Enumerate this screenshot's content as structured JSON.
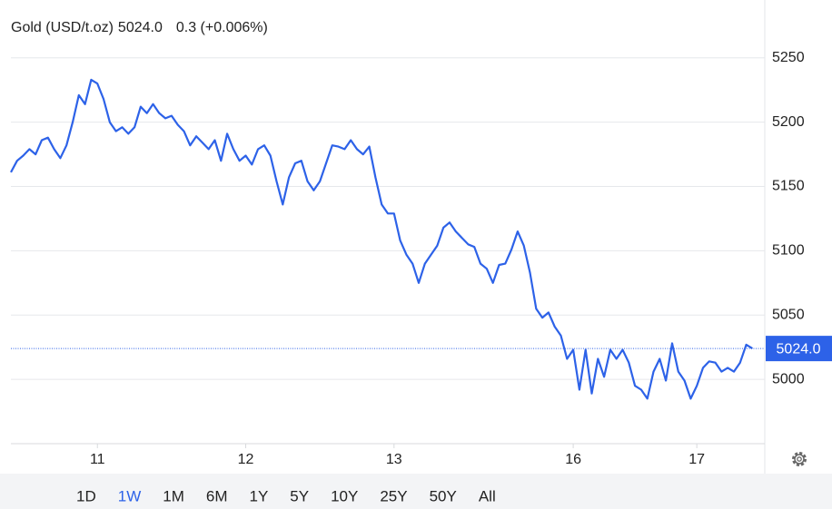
{
  "chart_data": {
    "type": "line",
    "title": "Gold (USD/t.oz)",
    "last_price": {
      "value": 5024,
      "label": "5024.0"
    },
    "change": "0.3 (+0.006%)",
    "change_color": "#2eb82e",
    "x": [
      0,
      1,
      2,
      3,
      4,
      5,
      6,
      7,
      8,
      9,
      10,
      11,
      12,
      13,
      14,
      15,
      16,
      17,
      18,
      19,
      20,
      21,
      22,
      23,
      24,
      25,
      26,
      27,
      28,
      29,
      30,
      31,
      32,
      33,
      34,
      35,
      36,
      37,
      38,
      39,
      40,
      41,
      42,
      43,
      44,
      45,
      46,
      47,
      48,
      49,
      50,
      51,
      52,
      53,
      54,
      55,
      56,
      57,
      58,
      59,
      60,
      61,
      62,
      63,
      64,
      65,
      66,
      67,
      68,
      69,
      70,
      71,
      72,
      73,
      74,
      75,
      76,
      77,
      78,
      79,
      80,
      81,
      82,
      83,
      84,
      85,
      86,
      87,
      88,
      89,
      90,
      91,
      92,
      93,
      94,
      95,
      96,
      97,
      98,
      99,
      100,
      101,
      102,
      103,
      104,
      105,
      106,
      107,
      108,
      109,
      110,
      111,
      112,
      113,
      114,
      115,
      116,
      117,
      118,
      119,
      120
    ],
    "series": [
      {
        "color": "#2d62e8",
        "values": [
          5161,
          5170,
          5174,
          5179,
          5175,
          5186,
          5188,
          5179,
          5172,
          5182,
          5200,
          5221,
          5214,
          5233,
          5230,
          5218,
          5200,
          5193,
          5196,
          5191,
          5196,
          5212,
          5207,
          5214,
          5207,
          5203,
          5205,
          5198,
          5193,
          5182,
          5189,
          5184,
          5179,
          5186,
          5170,
          5191,
          5179,
          5170,
          5174,
          5167,
          5179,
          5182,
          5174,
          5154,
          5136,
          5157,
          5168,
          5170,
          5154,
          5147,
          5154,
          5168,
          5182,
          5181,
          5179,
          5186,
          5179,
          5175,
          5181,
          5157,
          5136,
          5129,
          5129,
          5108,
          5097,
          5090,
          5075,
          5090,
          5097,
          5104,
          5118,
          5122,
          5115,
          5110,
          5105,
          5103,
          5090,
          5086,
          5075,
          5089,
          5090,
          5101,
          5115,
          5104,
          5083,
          5055,
          5048,
          5052,
          5041,
          5034,
          5016,
          5023,
          4992,
          5023,
          4989,
          5016,
          5002,
          5023,
          5016,
          5023,
          5013,
          4995,
          4992,
          4985,
          5006,
          5016,
          4999,
          5028,
          5006,
          4999,
          4985,
          4995,
          5009,
          5014,
          5013,
          5006,
          5009,
          5006,
          5013,
          5027,
          5024
        ]
      }
    ],
    "xlim": [
      0,
      122
    ],
    "xticks": [
      {
        "value": 14,
        "label": "11"
      },
      {
        "value": 38,
        "label": "12"
      },
      {
        "value": 62,
        "label": "13"
      },
      {
        "value": 91,
        "label": "16"
      },
      {
        "value": 111,
        "label": "17"
      }
    ],
    "ylim": [
      4950,
      5295
    ],
    "yticks": [
      5000,
      5050,
      5100,
      5150,
      5200,
      5250
    ],
    "grid": true
  },
  "range_buttons": {
    "options": [
      "1D",
      "1W",
      "1M",
      "6M",
      "1Y",
      "5Y",
      "10Y",
      "25Y",
      "50Y",
      "All"
    ],
    "selected": "1W"
  }
}
